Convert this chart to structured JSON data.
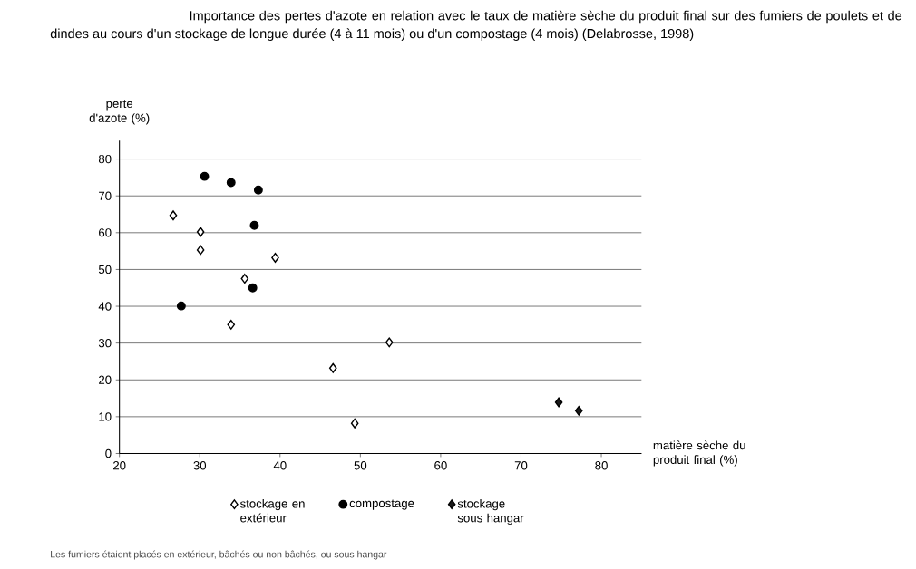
{
  "chart_data": {
    "type": "scatter",
    "title": "Importance des pertes d'azote en relation avec le taux de matière sèche du produit final sur des fumiers de poulets et de dindes au cours d'un stockage de longue durée (4 à 11 mois) ou d'un compostage (4 mois) (Delabrosse, 1998)",
    "xlabel": "matière sèche du produit final (%)",
    "ylabel": "perte d'azote (%)",
    "annotations": [
      "Les fumiers étaient placés en extérieur, bâchés ou non bâchés, ou sous hangar"
    ],
    "series": [
      {
        "name": "stockage en extérieur",
        "color": "#ffffff",
        "marker": "diamond",
        "x": [
          26.7,
          30.1,
          30.1,
          39.4,
          35.6,
          33.9,
          46.6,
          53.6,
          49.3
        ],
        "values": [
          64.7,
          60.2,
          55.3,
          53.2,
          47.5,
          35.0,
          23.2,
          30.2,
          8.2
        ]
      },
      {
        "name": "compostage",
        "color": "#000000",
        "marker": "circle",
        "x": [
          30.6,
          33.9,
          37.3,
          36.8,
          36.6,
          27.7
        ],
        "values": [
          75.3,
          73.6,
          71.6,
          62.0,
          45.0,
          40.1
        ]
      },
      {
        "name": "stockage sous hangar",
        "color": "#1a1a1a",
        "marker": "diamond",
        "x": [
          74.7,
          77.2
        ],
        "values": [
          13.9,
          11.6
        ]
      }
    ],
    "xlim": [
      20,
      85
    ],
    "ylim": [
      0,
      85
    ],
    "xticks": [
      20,
      30,
      40,
      50,
      60,
      70,
      80
    ],
    "yticks": [
      0,
      10,
      20,
      30,
      40,
      50,
      60,
      70,
      80
    ],
    "grid": "y",
    "legend": "bottom"
  }
}
